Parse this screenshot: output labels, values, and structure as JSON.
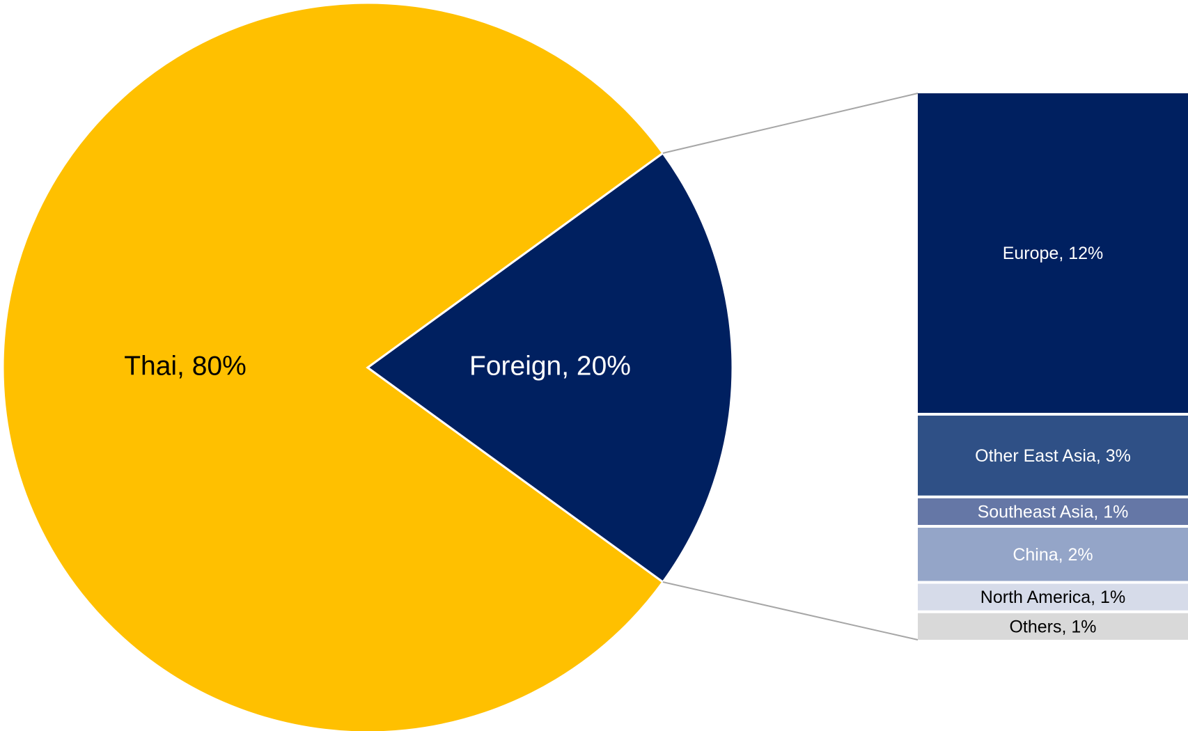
{
  "chart_data": [
    {
      "type": "pie",
      "categories": [
        "Thai",
        "Foreign"
      ],
      "values": [
        80,
        20
      ],
      "value_labels": [
        "Thai, 80%",
        "Foreign, 20%"
      ],
      "colors": [
        "#ffc000",
        "#002060"
      ],
      "label_colors": [
        "#000000",
        "#ffffff"
      ]
    },
    {
      "type": "bar",
      "categories": [
        "Europe",
        "Other East Asia",
        "Southeast Asia",
        "China",
        "North America",
        "Others"
      ],
      "values": [
        12,
        3,
        1,
        2,
        1,
        1
      ],
      "value_labels": [
        "Europe, 12%",
        "Other East Asia, 3%",
        "Southeast Asia, 1%",
        "China, 2%",
        "North America, 1%",
        "Others, 1%"
      ],
      "colors": [
        "#002060",
        "#2f5086",
        "#6577a6",
        "#94a5c8",
        "#d6dbe9",
        "#d9d9d9"
      ],
      "label_colors": [
        "#ffffff",
        "#ffffff",
        "#ffffff",
        "#ffffff",
        "#000000",
        "#000000"
      ]
    }
  ]
}
